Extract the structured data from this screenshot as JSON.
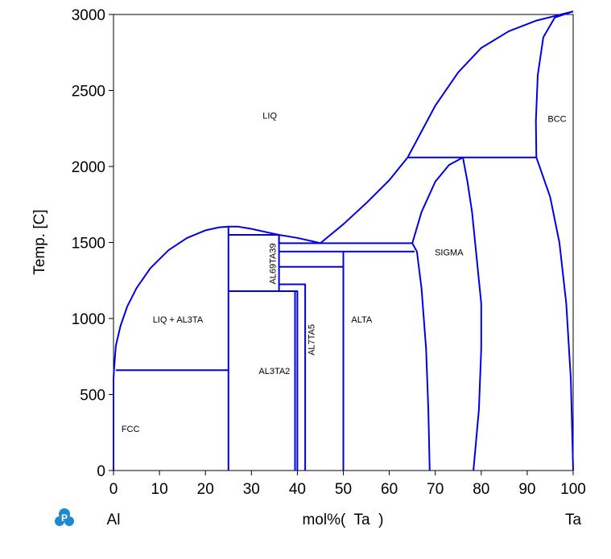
{
  "chart_data": {
    "type": "line",
    "title": "",
    "xlabel": "mol%(  Ta  )",
    "ylabel": "Temp.  [C]",
    "xlim": [
      0,
      100
    ],
    "ylim": [
      0,
      3000
    ],
    "x_ticks": [
      0,
      10,
      20,
      30,
      40,
      50,
      60,
      70,
      80,
      90,
      100
    ],
    "y_ticks": [
      0,
      500,
      1000,
      1500,
      2000,
      2500,
      3000
    ],
    "x_tick_labels": [
      "0",
      "10",
      "20",
      "30",
      "40",
      "50",
      "60",
      "70",
      "80",
      "90",
      "100"
    ],
    "y_tick_labels": [
      "0",
      "500",
      "1000",
      "1500",
      "2000",
      "2500",
      "3000"
    ],
    "left_element": "Al",
    "right_element": "Ta",
    "line_color": "#0000e6",
    "grid": false,
    "regions": [
      {
        "label": "LIQ",
        "x": 34,
        "y": 2330,
        "rotate": false
      },
      {
        "label": "BCC",
        "x": 96.5,
        "y": 2310,
        "rotate": false
      },
      {
        "label": "SIGMA",
        "x": 73,
        "y": 1430,
        "rotate": false
      },
      {
        "label": "LIQ + AL3TA",
        "x": 14,
        "y": 990,
        "rotate": false
      },
      {
        "label": "ALTA",
        "x": 54,
        "y": 990,
        "rotate": false
      },
      {
        "label": "AL3TA2",
        "x": 35,
        "y": 650,
        "rotate": false
      },
      {
        "label": "FCC",
        "x": 3.7,
        "y": 270,
        "rotate": false
      },
      {
        "label": "AL69TA39",
        "x": 34.8,
        "y": 1360,
        "rotate": true
      },
      {
        "label": "AL7TA5",
        "x": 43.2,
        "y": 860,
        "rotate": true
      }
    ],
    "series": [
      {
        "points": [
          [
            0,
            0
          ],
          [
            0,
            600
          ],
          [
            0.1,
            660
          ]
        ]
      },
      {
        "points": [
          [
            0.1,
            660
          ],
          [
            0.5,
            820
          ],
          [
            1.5,
            950
          ],
          [
            3,
            1080
          ],
          [
            5,
            1200
          ],
          [
            8,
            1330
          ],
          [
            12,
            1450
          ],
          [
            16,
            1530
          ],
          [
            20,
            1580
          ],
          [
            23,
            1600
          ],
          [
            25,
            1605
          ],
          [
            27,
            1605
          ],
          [
            30,
            1590
          ],
          [
            33,
            1570
          ],
          [
            36,
            1550
          ],
          [
            40,
            1530
          ],
          [
            43,
            1510
          ],
          [
            45,
            1495
          ]
        ]
      },
      {
        "points": [
          [
            0.5,
            660
          ],
          [
            25,
            660
          ]
        ]
      },
      {
        "points": [
          [
            25,
            0
          ],
          [
            25,
            1605
          ]
        ]
      },
      {
        "points": [
          [
            25,
            1550
          ],
          [
            36,
            1550
          ],
          [
            36,
            1180
          ]
        ]
      },
      {
        "points": [
          [
            25,
            1180
          ],
          [
            40,
            1180
          ],
          [
            40,
            0
          ]
        ]
      },
      {
        "points": [
          [
            36,
            1225
          ],
          [
            41.7,
            1225
          ],
          [
            41.7,
            0
          ]
        ]
      },
      {
        "points": [
          [
            36,
            1340
          ],
          [
            50,
            1340
          ]
        ]
      },
      {
        "points": [
          [
            36,
            1440
          ],
          [
            65.5,
            1440
          ]
        ]
      },
      {
        "points": [
          [
            36,
            1495
          ],
          [
            65,
            1495
          ]
        ]
      },
      {
        "points": [
          [
            36,
            1490
          ],
          [
            36,
            1550
          ]
        ]
      },
      {
        "points": [
          [
            39.5,
            0
          ],
          [
            39.5,
            1180
          ]
        ]
      },
      {
        "points": [
          [
            50,
            0
          ],
          [
            50,
            1440
          ]
        ]
      },
      {
        "points": [
          [
            45,
            1495
          ],
          [
            50,
            1620
          ],
          [
            55,
            1760
          ],
          [
            60,
            1910
          ],
          [
            64,
            2060
          ]
        ]
      },
      {
        "points": [
          [
            64,
            2060
          ],
          [
            70,
            2400
          ],
          [
            75,
            2620
          ],
          [
            80,
            2780
          ],
          [
            86,
            2890
          ],
          [
            92,
            2960
          ],
          [
            100,
            3020
          ]
        ]
      },
      {
        "points": [
          [
            64,
            2060
          ],
          [
            92,
            2060
          ]
        ]
      },
      {
        "points": [
          [
            65,
            1495
          ],
          [
            67,
            1700
          ],
          [
            70,
            1900
          ],
          [
            73,
            2010
          ],
          [
            76,
            2060
          ]
        ]
      },
      {
        "points": [
          [
            65,
            1495
          ],
          [
            66,
            1440
          ],
          [
            67,
            1200
          ],
          [
            68,
            800
          ],
          [
            68.5,
            400
          ],
          [
            68.8,
            0
          ]
        ]
      },
      {
        "points": [
          [
            76,
            2060
          ],
          [
            77,
            1900
          ],
          [
            78,
            1700
          ],
          [
            79,
            1400
          ],
          [
            80,
            1100
          ],
          [
            80,
            800
          ],
          [
            79.5,
            400
          ],
          [
            78.3,
            0
          ]
        ]
      },
      {
        "points": [
          [
            92,
            2060
          ],
          [
            91.9,
            2300
          ],
          [
            92.3,
            2600
          ],
          [
            93.5,
            2850
          ],
          [
            96,
            2980
          ],
          [
            100,
            3020
          ]
        ]
      },
      {
        "points": [
          [
            92,
            2060
          ],
          [
            95,
            1800
          ],
          [
            97,
            1500
          ],
          [
            98.5,
            1100
          ],
          [
            99.5,
            600
          ],
          [
            100,
            0
          ]
        ]
      }
    ]
  }
}
